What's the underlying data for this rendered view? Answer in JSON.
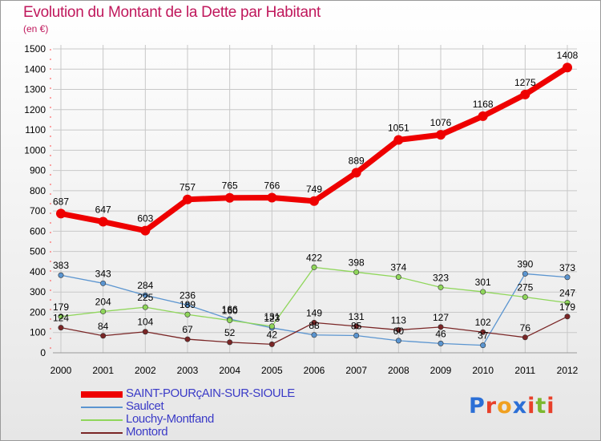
{
  "title": "Evolution du Montant de la Dette par Habitant",
  "subtitle": "(en €)",
  "colors": {
    "title": "#c0185c",
    "legend_text": "#3b3bc7",
    "grid": "#c8c8c8",
    "axis_marks": "#ff4d4d"
  },
  "logo": {
    "text": "Proxiti",
    "letter_colors": [
      "#2b6fd6",
      "#e8402a",
      "#f0a020",
      "#2b6fd6",
      "#e8402a",
      "#7cb82f",
      "#e8402a"
    ]
  },
  "chart_data": {
    "type": "line",
    "categories": [
      "2000",
      "2001",
      "2002",
      "2003",
      "2004",
      "2005",
      "2006",
      "2007",
      "2008",
      "2009",
      "2010",
      "2011",
      "2012"
    ],
    "ylim": [
      0,
      1500
    ],
    "yticks": [
      0,
      100,
      200,
      300,
      400,
      500,
      600,
      700,
      800,
      900,
      1000,
      1100,
      1200,
      1300,
      1400,
      1500
    ],
    "grid": true,
    "legend_placement": "bottom-left",
    "series": [
      {
        "name": "SAINT-POURçAIN-SUR-SIOULE",
        "color": "#ee0000",
        "values": [
          687,
          647,
          603,
          757,
          765,
          766,
          749,
          889,
          1051,
          1076,
          1168,
          1275,
          1408
        ],
        "labels": [
          "687",
          "647",
          "603",
          "757",
          "765",
          "766",
          "749",
          "889",
          "1051",
          "1076",
          "1168",
          "1275",
          "1408"
        ]
      },
      {
        "name": "Saulcet",
        "color": "#5b95d0",
        "values": [
          383,
          343,
          284,
          236,
          166,
          123,
          88,
          85,
          60,
          46,
          37,
          390,
          373
        ],
        "labels": [
          "383",
          "343",
          "284",
          "236",
          "166",
          "123",
          "88",
          "85",
          "60",
          "46",
          "37",
          "390",
          "373"
        ]
      },
      {
        "name": "Louchy-Montfand",
        "color": "#8fd65a",
        "values": [
          179,
          204,
          225,
          189,
          160,
          131,
          422,
          398,
          374,
          323,
          301,
          275,
          247
        ],
        "labels": [
          "179",
          "204",
          "225",
          "189",
          "160",
          "131",
          "422",
          "398",
          "374",
          "323",
          "301",
          "275",
          "247"
        ]
      },
      {
        "name": "Montord",
        "color": "#7a2626",
        "values": [
          124,
          84,
          104,
          67,
          52,
          42,
          149,
          131,
          113,
          127,
          102,
          76,
          179
        ],
        "labels": [
          "124",
          "84",
          "104",
          "67",
          "52",
          "42",
          "149",
          "131",
          "113",
          "127",
          "102",
          "76",
          "179"
        ]
      }
    ]
  }
}
